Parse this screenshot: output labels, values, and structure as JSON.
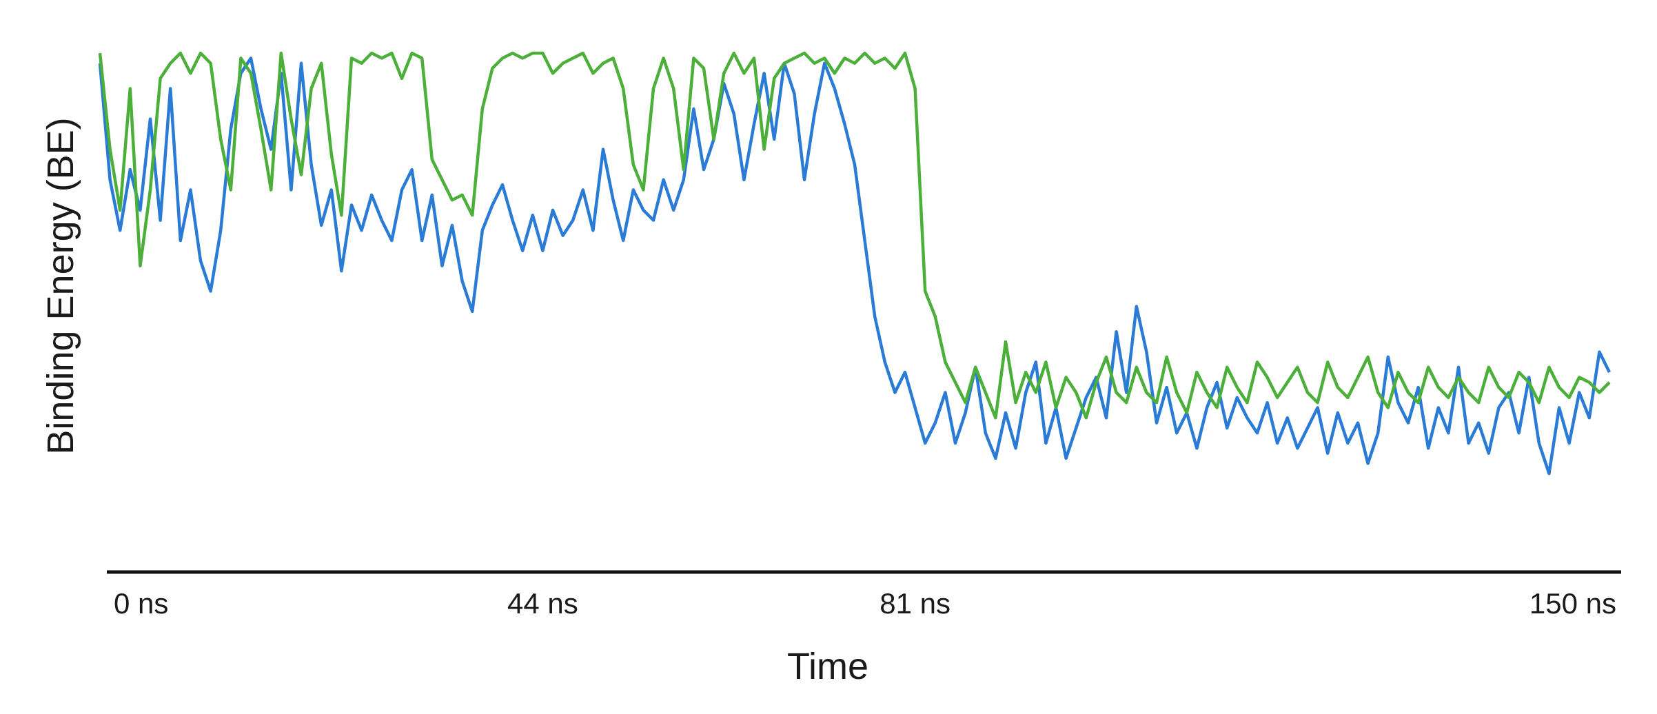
{
  "chart_data": {
    "type": "line",
    "title": "",
    "xlabel": "Time",
    "ylabel": "Binding Energy (BE)",
    "x_unit": "ns",
    "xlim": [
      0,
      150
    ],
    "ylim": [
      0,
      1
    ],
    "x_ticks": [
      {
        "value": 0,
        "label": "0 ns"
      },
      {
        "value": 44,
        "label": "44 ns"
      },
      {
        "value": 81,
        "label": "81 ns"
      },
      {
        "value": 150,
        "label": "150 ns"
      }
    ],
    "y_tick_labels": "none",
    "grid": false,
    "legend": "none",
    "series": [
      {
        "color": "#2a7bd5",
        "points": [
          [
            0,
            0.95
          ],
          [
            1,
            0.72
          ],
          [
            2,
            0.62
          ],
          [
            3,
            0.74
          ],
          [
            4,
            0.66
          ],
          [
            5,
            0.84
          ],
          [
            6,
            0.64
          ],
          [
            7,
            0.9
          ],
          [
            8,
            0.6
          ],
          [
            9,
            0.7
          ],
          [
            10,
            0.56
          ],
          [
            11,
            0.5
          ],
          [
            12,
            0.62
          ],
          [
            13,
            0.82
          ],
          [
            14,
            0.93
          ],
          [
            15,
            0.96
          ],
          [
            16,
            0.86
          ],
          [
            17,
            0.78
          ],
          [
            18,
            0.93
          ],
          [
            19,
            0.7
          ],
          [
            20,
            0.95
          ],
          [
            21,
            0.75
          ],
          [
            22,
            0.63
          ],
          [
            23,
            0.7
          ],
          [
            24,
            0.54
          ],
          [
            25,
            0.67
          ],
          [
            26,
            0.62
          ],
          [
            27,
            0.69
          ],
          [
            28,
            0.64
          ],
          [
            29,
            0.6
          ],
          [
            30,
            0.7
          ],
          [
            31,
            0.74
          ],
          [
            32,
            0.6
          ],
          [
            33,
            0.69
          ],
          [
            34,
            0.55
          ],
          [
            35,
            0.63
          ],
          [
            36,
            0.52
          ],
          [
            37,
            0.46
          ],
          [
            38,
            0.62
          ],
          [
            39,
            0.67
          ],
          [
            40,
            0.71
          ],
          [
            41,
            0.64
          ],
          [
            42,
            0.58
          ],
          [
            43,
            0.65
          ],
          [
            44,
            0.58
          ],
          [
            45,
            0.66
          ],
          [
            46,
            0.61
          ],
          [
            47,
            0.64
          ],
          [
            48,
            0.7
          ],
          [
            49,
            0.62
          ],
          [
            50,
            0.78
          ],
          [
            51,
            0.68
          ],
          [
            52,
            0.6
          ],
          [
            53,
            0.7
          ],
          [
            54,
            0.66
          ],
          [
            55,
            0.64
          ],
          [
            56,
            0.72
          ],
          [
            57,
            0.66
          ],
          [
            58,
            0.72
          ],
          [
            59,
            0.86
          ],
          [
            60,
            0.74
          ],
          [
            61,
            0.8
          ],
          [
            62,
            0.91
          ],
          [
            63,
            0.85
          ],
          [
            64,
            0.72
          ],
          [
            65,
            0.83
          ],
          [
            66,
            0.93
          ],
          [
            67,
            0.8
          ],
          [
            68,
            0.95
          ],
          [
            69,
            0.89
          ],
          [
            70,
            0.72
          ],
          [
            71,
            0.85
          ],
          [
            72,
            0.95
          ],
          [
            73,
            0.9
          ],
          [
            74,
            0.83
          ],
          [
            75,
            0.75
          ],
          [
            76,
            0.6
          ],
          [
            77,
            0.45
          ],
          [
            78,
            0.36
          ],
          [
            79,
            0.3
          ],
          [
            80,
            0.34
          ],
          [
            81,
            0.27
          ],
          [
            82,
            0.2
          ],
          [
            83,
            0.24
          ],
          [
            84,
            0.3
          ],
          [
            85,
            0.2
          ],
          [
            86,
            0.26
          ],
          [
            87,
            0.35
          ],
          [
            88,
            0.22
          ],
          [
            89,
            0.17
          ],
          [
            90,
            0.26
          ],
          [
            91,
            0.19
          ],
          [
            92,
            0.3
          ],
          [
            93,
            0.36
          ],
          [
            94,
            0.2
          ],
          [
            95,
            0.27
          ],
          [
            96,
            0.17
          ],
          [
            97,
            0.23
          ],
          [
            98,
            0.29
          ],
          [
            99,
            0.33
          ],
          [
            100,
            0.25
          ],
          [
            101,
            0.42
          ],
          [
            102,
            0.3
          ],
          [
            103,
            0.47
          ],
          [
            104,
            0.38
          ],
          [
            105,
            0.24
          ],
          [
            106,
            0.31
          ],
          [
            107,
            0.22
          ],
          [
            108,
            0.26
          ],
          [
            109,
            0.19
          ],
          [
            110,
            0.27
          ],
          [
            111,
            0.32
          ],
          [
            112,
            0.23
          ],
          [
            113,
            0.29
          ],
          [
            114,
            0.25
          ],
          [
            115,
            0.22
          ],
          [
            116,
            0.28
          ],
          [
            117,
            0.2
          ],
          [
            118,
            0.25
          ],
          [
            119,
            0.19
          ],
          [
            120,
            0.23
          ],
          [
            121,
            0.27
          ],
          [
            122,
            0.18
          ],
          [
            123,
            0.26
          ],
          [
            124,
            0.2
          ],
          [
            125,
            0.24
          ],
          [
            126,
            0.16
          ],
          [
            127,
            0.22
          ],
          [
            128,
            0.37
          ],
          [
            129,
            0.28
          ],
          [
            130,
            0.24
          ],
          [
            131,
            0.31
          ],
          [
            132,
            0.19
          ],
          [
            133,
            0.27
          ],
          [
            134,
            0.22
          ],
          [
            135,
            0.35
          ],
          [
            136,
            0.2
          ],
          [
            137,
            0.24
          ],
          [
            138,
            0.18
          ],
          [
            139,
            0.27
          ],
          [
            140,
            0.3
          ],
          [
            141,
            0.22
          ],
          [
            142,
            0.33
          ],
          [
            143,
            0.2
          ],
          [
            144,
            0.14
          ],
          [
            145,
            0.27
          ],
          [
            146,
            0.2
          ],
          [
            147,
            0.3
          ],
          [
            148,
            0.25
          ],
          [
            149,
            0.38
          ],
          [
            150,
            0.34
          ]
        ]
      },
      {
        "color": "#4caf3a",
        "points": [
          [
            0,
            0.97
          ],
          [
            1,
            0.78
          ],
          [
            2,
            0.66
          ],
          [
            3,
            0.9
          ],
          [
            4,
            0.55
          ],
          [
            5,
            0.7
          ],
          [
            6,
            0.92
          ],
          [
            7,
            0.95
          ],
          [
            8,
            0.97
          ],
          [
            9,
            0.93
          ],
          [
            10,
            0.97
          ],
          [
            11,
            0.95
          ],
          [
            12,
            0.8
          ],
          [
            13,
            0.7
          ],
          [
            14,
            0.96
          ],
          [
            15,
            0.93
          ],
          [
            16,
            0.82
          ],
          [
            17,
            0.7
          ],
          [
            18,
            0.97
          ],
          [
            19,
            0.84
          ],
          [
            20,
            0.73
          ],
          [
            21,
            0.9
          ],
          [
            22,
            0.95
          ],
          [
            23,
            0.77
          ],
          [
            24,
            0.65
          ],
          [
            25,
            0.96
          ],
          [
            26,
            0.95
          ],
          [
            27,
            0.97
          ],
          [
            28,
            0.96
          ],
          [
            29,
            0.97
          ],
          [
            30,
            0.92
          ],
          [
            31,
            0.97
          ],
          [
            32,
            0.96
          ],
          [
            33,
            0.76
          ],
          [
            34,
            0.72
          ],
          [
            35,
            0.68
          ],
          [
            36,
            0.69
          ],
          [
            37,
            0.65
          ],
          [
            38,
            0.86
          ],
          [
            39,
            0.94
          ],
          [
            40,
            0.96
          ],
          [
            41,
            0.97
          ],
          [
            42,
            0.96
          ],
          [
            43,
            0.97
          ],
          [
            44,
            0.97
          ],
          [
            45,
            0.93
          ],
          [
            46,
            0.95
          ],
          [
            47,
            0.96
          ],
          [
            48,
            0.97
          ],
          [
            49,
            0.93
          ],
          [
            50,
            0.95
          ],
          [
            51,
            0.96
          ],
          [
            52,
            0.9
          ],
          [
            53,
            0.75
          ],
          [
            54,
            0.7
          ],
          [
            55,
            0.9
          ],
          [
            56,
            0.96
          ],
          [
            57,
            0.9
          ],
          [
            58,
            0.74
          ],
          [
            59,
            0.96
          ],
          [
            60,
            0.94
          ],
          [
            61,
            0.8
          ],
          [
            62,
            0.93
          ],
          [
            63,
            0.97
          ],
          [
            64,
            0.93
          ],
          [
            65,
            0.96
          ],
          [
            66,
            0.78
          ],
          [
            67,
            0.92
          ],
          [
            68,
            0.95
          ],
          [
            69,
            0.96
          ],
          [
            70,
            0.97
          ],
          [
            71,
            0.95
          ],
          [
            72,
            0.96
          ],
          [
            73,
            0.93
          ],
          [
            74,
            0.96
          ],
          [
            75,
            0.95
          ],
          [
            76,
            0.97
          ],
          [
            77,
            0.95
          ],
          [
            78,
            0.96
          ],
          [
            79,
            0.94
          ],
          [
            80,
            0.97
          ],
          [
            81,
            0.9
          ],
          [
            82,
            0.5
          ],
          [
            83,
            0.45
          ],
          [
            84,
            0.36
          ],
          [
            85,
            0.32
          ],
          [
            86,
            0.28
          ],
          [
            87,
            0.35
          ],
          [
            88,
            0.3
          ],
          [
            89,
            0.25
          ],
          [
            90,
            0.4
          ],
          [
            91,
            0.28
          ],
          [
            92,
            0.34
          ],
          [
            93,
            0.3
          ],
          [
            94,
            0.36
          ],
          [
            95,
            0.27
          ],
          [
            96,
            0.33
          ],
          [
            97,
            0.3
          ],
          [
            98,
            0.25
          ],
          [
            99,
            0.32
          ],
          [
            100,
            0.37
          ],
          [
            101,
            0.3
          ],
          [
            102,
            0.28
          ],
          [
            103,
            0.35
          ],
          [
            104,
            0.3
          ],
          [
            105,
            0.28
          ],
          [
            106,
            0.37
          ],
          [
            107,
            0.3
          ],
          [
            108,
            0.26
          ],
          [
            109,
            0.34
          ],
          [
            110,
            0.3
          ],
          [
            111,
            0.27
          ],
          [
            112,
            0.35
          ],
          [
            113,
            0.31
          ],
          [
            114,
            0.28
          ],
          [
            115,
            0.36
          ],
          [
            116,
            0.33
          ],
          [
            117,
            0.29
          ],
          [
            118,
            0.32
          ],
          [
            119,
            0.35
          ],
          [
            120,
            0.3
          ],
          [
            121,
            0.28
          ],
          [
            122,
            0.36
          ],
          [
            123,
            0.31
          ],
          [
            124,
            0.29
          ],
          [
            125,
            0.33
          ],
          [
            126,
            0.37
          ],
          [
            127,
            0.3
          ],
          [
            128,
            0.27
          ],
          [
            129,
            0.34
          ],
          [
            130,
            0.3
          ],
          [
            131,
            0.28
          ],
          [
            132,
            0.35
          ],
          [
            133,
            0.31
          ],
          [
            134,
            0.29
          ],
          [
            135,
            0.33
          ],
          [
            136,
            0.3
          ],
          [
            137,
            0.28
          ],
          [
            138,
            0.35
          ],
          [
            139,
            0.31
          ],
          [
            140,
            0.29
          ],
          [
            141,
            0.34
          ],
          [
            142,
            0.32
          ],
          [
            143,
            0.28
          ],
          [
            144,
            0.35
          ],
          [
            145,
            0.31
          ],
          [
            146,
            0.29
          ],
          [
            147,
            0.33
          ],
          [
            148,
            0.32
          ],
          [
            149,
            0.3
          ],
          [
            150,
            0.32
          ]
        ]
      }
    ]
  }
}
